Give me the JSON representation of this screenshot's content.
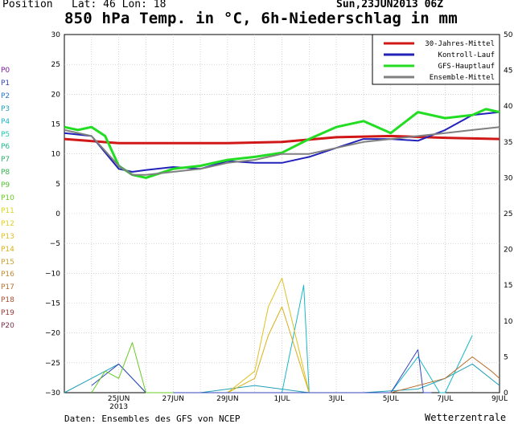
{
  "header": {
    "position_label": "Position",
    "latlon": "Lat: 46 Lon: 18",
    "run": "Sun,23JUN2013 06Z",
    "title": "850 hPa Temp. in °C, 6h-Niederschlag in mm"
  },
  "footer": {
    "source": "Daten: Ensembles des GFS von NCEP",
    "brand": "Wetterzentrale"
  },
  "members": [
    {
      "label": "P0",
      "color": "#7a1a9a"
    },
    {
      "label": "P1",
      "color": "#3344bb"
    },
    {
      "label": "P2",
      "color": "#2277cc"
    },
    {
      "label": "P3",
      "color": "#1fa0b8"
    },
    {
      "label": "P4",
      "color": "#18b8c8"
    },
    {
      "label": "P5",
      "color": "#22c8b0"
    },
    {
      "label": "P6",
      "color": "#22b890"
    },
    {
      "label": "P7",
      "color": "#2fae6a"
    },
    {
      "label": "P8",
      "color": "#33b04a"
    },
    {
      "label": "P9",
      "color": "#55c030"
    },
    {
      "label": "P10",
      "color": "#66cc22"
    },
    {
      "label": "P11",
      "color": "#d6d61c"
    },
    {
      "label": "P12",
      "color": "#e0d020"
    },
    {
      "label": "P13",
      "color": "#e0c020"
    },
    {
      "label": "P14",
      "color": "#d8b018"
    },
    {
      "label": "P15",
      "color": "#c8a030"
    },
    {
      "label": "P16",
      "color": "#c08a30"
    },
    {
      "label": "P17",
      "color": "#b87030"
    },
    {
      "label": "P18",
      "color": "#a85030"
    },
    {
      "label": "P19",
      "color": "#983838"
    },
    {
      "label": "P20",
      "color": "#7a3048"
    }
  ],
  "chart_data": {
    "type": "line",
    "title": "850 hPa Temp. in °C, 6h-Niederschlag in mm",
    "x_tick_labels": [
      "25JUN\n2013",
      "27JUN",
      "29JUN",
      "1JUL",
      "3JUL",
      "5JUL",
      "7JUL",
      "9JUL"
    ],
    "x_tick_days": [
      2,
      4,
      6,
      8,
      10,
      12,
      14,
      16
    ],
    "x_range_days": [
      0,
      16
    ],
    "y_left": {
      "range": [
        -30,
        30
      ],
      "ticks": [
        -30,
        -25,
        -20,
        -15,
        -10,
        -5,
        0,
        5,
        10,
        15,
        20,
        25,
        30
      ]
    },
    "y_right": {
      "range": [
        0,
        50
      ],
      "ticks": [
        0,
        5,
        10,
        15,
        20,
        25,
        30,
        35,
        40,
        45,
        50
      ]
    },
    "legend": {
      "position": "top-right",
      "entries": [
        {
          "name": "30-Jahres-Mittel",
          "color": "#d01818"
        },
        {
          "name": "Kontroll-Lauf",
          "color": "#2222bb"
        },
        {
          "name": "GFS-Hauptlauf",
          "color": "#22dd22"
        },
        {
          "name": "Ensemble-Mittel",
          "color": "#808080"
        }
      ]
    },
    "series": [
      {
        "name": "30-Jahres-Mittel",
        "color": "#d01818",
        "x": [
          0,
          2,
          4,
          6,
          8,
          10,
          12,
          14,
          16
        ],
        "y": [
          12.5,
          11.8,
          11.8,
          11.8,
          12.0,
          12.8,
          13.0,
          12.7,
          12.5
        ]
      },
      {
        "name": "Kontroll-Lauf",
        "color": "#2222bb",
        "x": [
          0,
          1,
          2,
          2.5,
          3,
          4,
          5,
          6,
          7,
          8,
          9,
          10,
          11,
          12,
          13,
          14,
          15,
          16
        ],
        "y": [
          13.5,
          13,
          7.5,
          7.0,
          7.3,
          7.8,
          7.5,
          8.8,
          8.5,
          8.5,
          9.5,
          11,
          12.5,
          12.5,
          12.2,
          14,
          16.5,
          17
        ]
      },
      {
        "name": "GFS-Hauptlauf",
        "color": "#22dd22",
        "x": [
          0,
          0.5,
          1,
          1.5,
          2,
          2.5,
          3,
          4,
          5,
          6,
          7,
          8,
          9,
          10,
          11,
          12,
          13,
          14,
          15,
          15.5,
          16
        ],
        "y": [
          14.5,
          14,
          14.5,
          13,
          8,
          6.5,
          6.0,
          7.5,
          8,
          9,
          9.5,
          10.2,
          12.5,
          14.5,
          15.5,
          13.5,
          17,
          16,
          16.5,
          17.5,
          17
        ]
      },
      {
        "name": "Ensemble-Mittel",
        "color": "#808080",
        "x": [
          0,
          1,
          2,
          2.5,
          3,
          4,
          5,
          6,
          7,
          8,
          9,
          10,
          11,
          12,
          13,
          14,
          15,
          16
        ],
        "y": [
          14,
          13,
          8,
          6.5,
          6.5,
          7,
          7.5,
          8.5,
          9,
          10,
          10,
          11,
          12,
          12.5,
          13,
          13.5,
          14,
          14.5
        ]
      }
    ],
    "precip_ensemble": [
      {
        "member": "P3",
        "x": [
          0,
          1,
          2,
          3,
          5,
          7,
          9,
          11,
          13,
          14,
          15,
          16
        ],
        "y": [
          0,
          2,
          4,
          0,
          0,
          1,
          0,
          0,
          0.5,
          2,
          4,
          1
        ]
      },
      {
        "member": "P4",
        "x": [
          7,
          8,
          8.8,
          9,
          10,
          11,
          12,
          13,
          13.8,
          14,
          15
        ],
        "y": [
          0,
          0,
          15,
          0,
          0,
          0,
          0,
          5,
          0,
          0,
          8
        ]
      },
      {
        "member": "P13",
        "x": [
          6,
          7,
          7.5,
          8,
          9,
          10
        ],
        "y": [
          0,
          3,
          12,
          16,
          0,
          0
        ]
      },
      {
        "member": "P14",
        "x": [
          6,
          7,
          7.5,
          8,
          9
        ],
        "y": [
          0,
          2,
          8,
          12,
          0
        ]
      },
      {
        "member": "P1",
        "x": [
          1,
          2,
          3,
          4,
          12,
          13,
          13.2,
          13.5
        ],
        "y": [
          1,
          4,
          0,
          0,
          0,
          6,
          0,
          0
        ]
      },
      {
        "member": "P10",
        "x": [
          1,
          1.5,
          2,
          2.5,
          3,
          4
        ],
        "y": [
          0,
          3,
          2,
          7,
          0,
          0
        ]
      },
      {
        "member": "P17",
        "x": [
          12,
          13,
          14,
          15,
          15.7,
          16
        ],
        "y": [
          0,
          1,
          2,
          5,
          3,
          2
        ]
      }
    ]
  }
}
